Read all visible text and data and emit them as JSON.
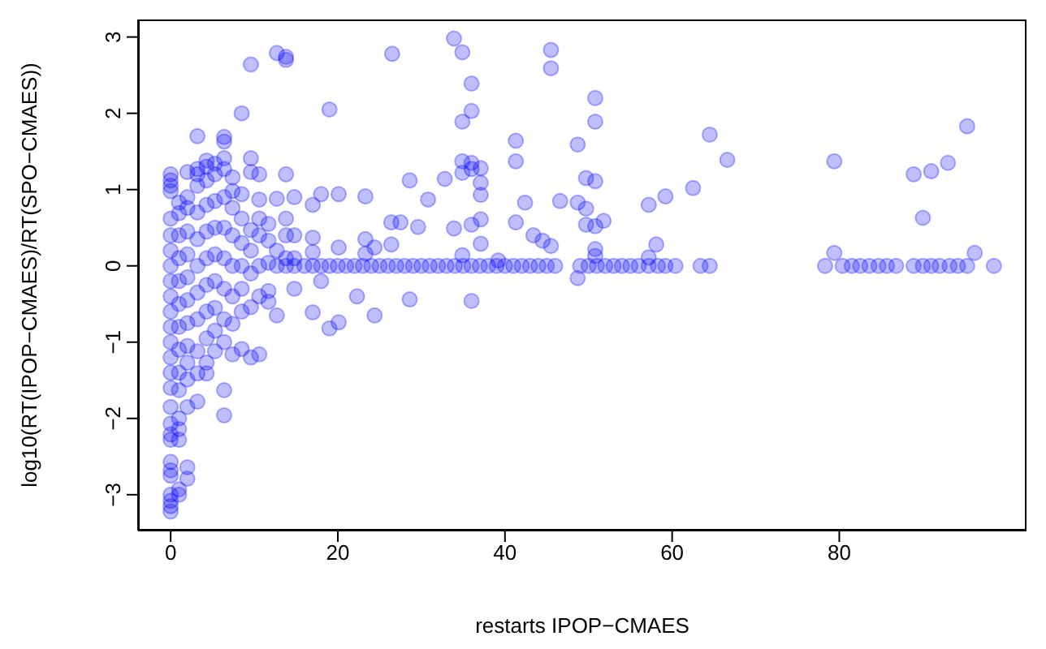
{
  "chart_data": {
    "type": "scatter",
    "xlabel": "restarts IPOP−CMAES",
    "ylabel": "log10(RT(IPOP−CMAES)/RT(SPO−CMAES))",
    "color": "#0000ff",
    "marker": "circle",
    "grid": false,
    "xlim": [
      -3.9,
      102.4
    ],
    "ylim": [
      -3.47,
      3.23
    ],
    "xticks": [
      0,
      20,
      40,
      60,
      80
    ],
    "yticks": [
      -3,
      -2,
      -1,
      0,
      1,
      2,
      3
    ],
    "x": [
      0,
      0,
      0,
      0,
      0,
      0,
      0,
      0,
      0,
      0,
      0,
      0,
      0,
      0,
      0,
      0,
      0,
      0,
      0,
      0,
      0,
      0,
      0,
      0,
      0,
      0,
      0,
      1,
      1,
      1,
      1,
      1,
      1,
      1,
      1,
      1,
      1,
      1,
      1,
      1,
      1,
      1,
      2,
      2,
      2,
      2,
      2,
      2,
      2,
      2,
      2,
      2,
      2,
      2,
      2,
      2,
      3.2,
      3.2,
      3.2,
      3.2,
      3.2,
      3.2,
      3.2,
      3.2,
      3.2,
      3.2,
      3.2,
      3.2,
      4.3,
      4.3,
      4.3,
      4.3,
      4.3,
      4.3,
      4.3,
      4.3,
      4.3,
      4.3,
      4.3,
      5.3,
      5.3,
      5.3,
      5.3,
      5.3,
      5.3,
      5.3,
      5.3,
      5.3,
      6.4,
      6.4,
      6.4,
      6.4,
      6.4,
      6.4,
      6.4,
      6.4,
      6.4,
      6.4,
      6.4,
      6.4,
      7.4,
      7.4,
      7.4,
      7.4,
      7.4,
      7.4,
      7.4,
      7.4,
      8.5,
      8.5,
      8.5,
      8.5,
      8.5,
      8.5,
      8.5,
      8.5,
      9.6,
      9.6,
      9.6,
      9.6,
      9.6,
      9.6,
      9.6,
      9.6,
      10.6,
      10.6,
      10.6,
      10.6,
      10.6,
      10.6,
      10.6,
      11.7,
      11.7,
      11.7,
      11.7,
      11.7,
      12.7,
      12.7,
      12.7,
      12.7,
      12.7,
      13.8,
      13.8,
      13.8,
      13.8,
      13.8,
      13.8,
      13.8,
      14.8,
      14.8,
      14.8,
      14.8,
      14.8,
      26.5,
      33.9,
      34.9,
      36,
      36,
      34.9,
      19,
      45.5,
      45.5,
      50.8,
      50.8,
      41.3,
      41.3,
      48.7,
      34.9,
      34.9,
      36,
      36,
      37.1,
      37.1,
      37.1,
      32.8,
      28.6,
      30.8,
      42.4,
      46.6,
      49.7,
      50.8,
      48.7,
      49.7,
      51.8,
      50.8,
      49.7,
      26.4,
      27.5,
      29.6,
      26.4,
      33.9,
      36,
      37.1,
      37.1,
      34.9,
      41.3,
      43.4,
      44.5,
      45.5,
      39.2,
      50.8,
      50.8,
      18,
      20.1,
      17,
      23.3,
      17,
      17,
      20.1,
      23.3,
      23.3,
      24.4,
      18,
      22.3,
      17,
      19,
      20.1,
      24.4,
      28.6,
      36,
      48.7,
      16,
      17,
      18,
      19,
      20,
      21,
      22,
      23,
      24,
      25,
      26,
      27,
      28,
      29,
      30,
      31,
      32,
      33,
      34,
      35,
      36,
      37,
      38,
      39,
      40,
      41,
      42,
      43,
      44,
      45,
      46,
      49,
      50,
      51,
      52,
      53,
      54,
      55,
      57.2,
      59.2,
      58.1,
      57.2,
      62.5,
      64.5,
      66.6,
      79.4,
      79.4,
      88.9,
      91,
      93,
      95.3,
      90,
      96.2,
      56,
      57.2,
      58.3,
      59.2,
      60.4,
      63.4,
      64.5,
      78.3,
      80.4,
      81.5,
      82.5,
      83.6,
      84.7,
      85.7,
      86.8,
      88.9,
      90,
      91,
      92,
      93.2,
      94.2,
      95.3,
      98.5
    ],
    "values": [
      1.2,
      1.12,
      1.05,
      0.98,
      0.62,
      0.4,
      0.2,
      0,
      -0.2,
      -0.4,
      -0.6,
      -0.8,
      -1.0,
      -1.2,
      -1.4,
      -1.6,
      -1.85,
      -2.07,
      -2.21,
      -2.28,
      -2.57,
      -2.68,
      -2.75,
      -3.0,
      -3.08,
      -3.15,
      -3.22,
      0.83,
      0.69,
      0.4,
      0.1,
      -0.2,
      -0.5,
      -0.8,
      -1.1,
      -1.4,
      -1.63,
      -2.0,
      -2.14,
      -2.28,
      -2.93,
      -3.0,
      1.23,
      0.9,
      0.76,
      0.45,
      0.15,
      -0.15,
      -0.45,
      -0.75,
      -1.05,
      -1.27,
      -1.49,
      -1.85,
      -2.64,
      -2.79,
      1.7,
      1.27,
      1.2,
      1.05,
      0.7,
      0.35,
      0,
      -0.35,
      -0.7,
      -1.12,
      -1.41,
      -1.78,
      1.38,
      1.3,
      1.12,
      0.8,
      0.45,
      0.1,
      -0.25,
      -0.6,
      -0.95,
      -1.27,
      -1.41,
      1.34,
      1.2,
      0.85,
      0.5,
      0.15,
      -0.2,
      -0.55,
      -0.85,
      -1.12,
      1.69,
      1.63,
      1.41,
      1.27,
      0.9,
      0.5,
      0.1,
      -0.3,
      -0.7,
      -1.0,
      -1.63,
      -1.96,
      1.16,
      0.98,
      0.76,
      0.4,
      0,
      -0.4,
      -0.76,
      -1.16,
      2.0,
      0.94,
      0.62,
      0.3,
      0,
      -0.3,
      -0.6,
      -1.09,
      2.64,
      1.41,
      1.23,
      0.47,
      0.2,
      -0.1,
      -0.54,
      -1.2,
      1.2,
      0.87,
      0.62,
      0.4,
      0,
      -0.4,
      -1.16,
      0.55,
      0.33,
      0.04,
      -0.33,
      -0.47,
      2.79,
      0.88,
      0.2,
      0,
      -0.65,
      2.74,
      2.7,
      1.2,
      0.62,
      0.4,
      0.1,
      0,
      0.9,
      0.4,
      0.1,
      0,
      -0.3,
      2.78,
      2.98,
      2.8,
      2.39,
      2.03,
      1.89,
      2.05,
      2.83,
      2.59,
      2.2,
      1.89,
      1.64,
      1.37,
      1.59,
      1.37,
      1.22,
      1.35,
      1.27,
      1.28,
      1.09,
      0.93,
      1.14,
      1.12,
      0.87,
      0.83,
      0.85,
      1.15,
      1.11,
      0.83,
      0.75,
      0.59,
      0.52,
      0.54,
      0.57,
      0.57,
      0.51,
      0.28,
      0.49,
      0.54,
      0.61,
      0.29,
      0.14,
      0.57,
      0.4,
      0.33,
      0.26,
      0.07,
      0.22,
      0.13,
      0.94,
      0.94,
      0.8,
      0.91,
      0.37,
      0.18,
      0.24,
      0.35,
      0.16,
      0.24,
      -0.2,
      -0.4,
      -0.61,
      -0.82,
      -0.74,
      -0.65,
      -0.44,
      -0.46,
      -0.16,
      0,
      0,
      0,
      0,
      0,
      0,
      0,
      0,
      0,
      0,
      0,
      0,
      0,
      0,
      0,
      0,
      0,
      0,
      0,
      0,
      0,
      0,
      0,
      0,
      0,
      0,
      0,
      0,
      0,
      0,
      0,
      0,
      0,
      0,
      0,
      0,
      0,
      0,
      0.8,
      0.91,
      0.28,
      0.11,
      1.02,
      1.72,
      1.39,
      1.37,
      0.17,
      1.2,
      1.24,
      1.35,
      1.83,
      0.63,
      0.17,
      0,
      0,
      0,
      0,
      0,
      0,
      0,
      0,
      0,
      0,
      0,
      0,
      0,
      0,
      0,
      0,
      0,
      0,
      0,
      0,
      0,
      0,
      0
    ]
  }
}
